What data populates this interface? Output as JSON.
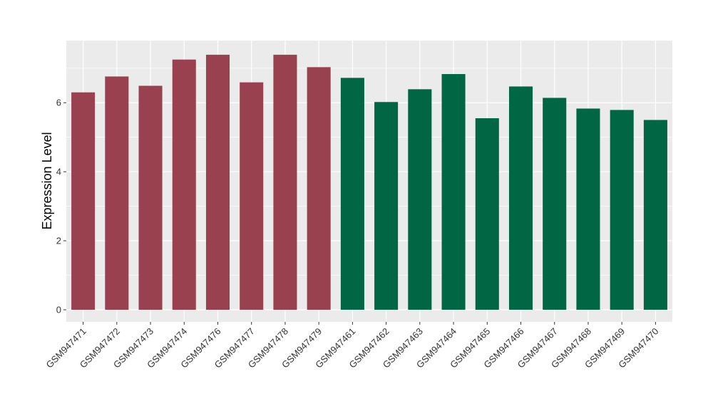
{
  "chart_data": {
    "type": "bar",
    "title": "",
    "xlabel": "",
    "ylabel": "Expression Level",
    "ylim": [
      -0.35,
      7.8
    ],
    "yticks": [
      0,
      2,
      4,
      6
    ],
    "grid": true,
    "categories": [
      "GSM947471",
      "GSM947472",
      "GSM947473",
      "GSM947474",
      "GSM947476",
      "GSM947477",
      "GSM947478",
      "GSM947479",
      "GSM947461",
      "GSM947462",
      "GSM947463",
      "GSM947464",
      "GSM947465",
      "GSM947466",
      "GSM947467",
      "GSM947468",
      "GSM947469",
      "GSM947470"
    ],
    "values": [
      6.3,
      6.76,
      6.49,
      7.25,
      7.39,
      6.59,
      7.39,
      7.03,
      6.72,
      6.02,
      6.39,
      6.83,
      5.55,
      6.47,
      6.14,
      5.83,
      5.79,
      5.5
    ],
    "groups": [
      0,
      0,
      0,
      0,
      0,
      0,
      0,
      0,
      1,
      1,
      1,
      1,
      1,
      1,
      1,
      1,
      1,
      1
    ],
    "colors": [
      "#9a4150",
      "#006644"
    ]
  }
}
